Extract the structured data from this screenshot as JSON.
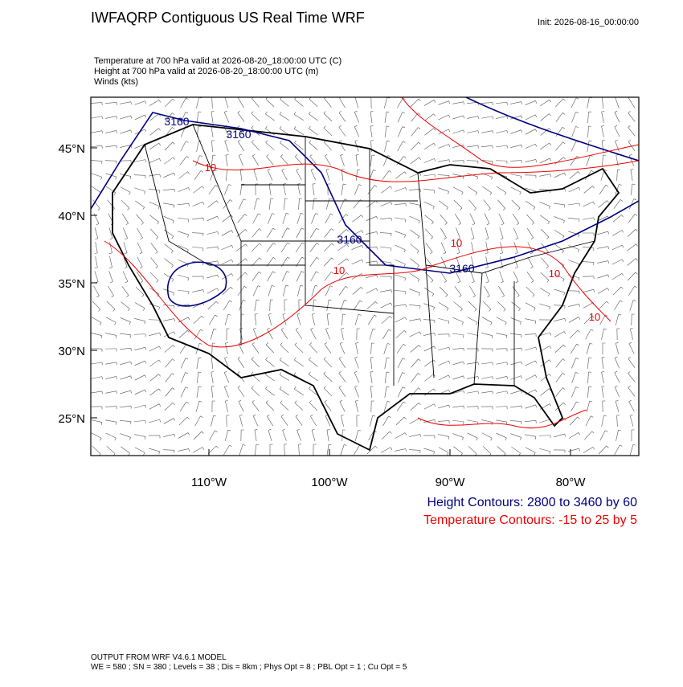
{
  "header": {
    "title": "IWFAQRP Contiguous US Real Time WRF",
    "init": "Init: 2026-08-16_00:00:00"
  },
  "fields": [
    "Temperature at 700 hPa valid at 2026-08-20_18:00:00 UTC   (C)",
    "Height at 700 hPa valid at 2026-08-20_18:00:00 UTC   (m)",
    "Winds   (kts)"
  ],
  "map": {
    "lat_labels": [
      "45°N",
      "40°N",
      "35°N",
      "30°N",
      "25°N"
    ],
    "lon_labels": [
      "110°W",
      "100°W",
      "90°W",
      "80°W"
    ],
    "height_labels": [
      "3160",
      "3160",
      "3160",
      "3160"
    ],
    "temperature_labels": [
      "10",
      "10",
      "10",
      "10",
      "10"
    ]
  },
  "contour_legend": {
    "height": "Height Contours: 2800 to 3460 by 60",
    "temperature": "Temperature Contours: -15 to 25 by 5"
  },
  "footer": [
    "OUTPUT FROM WRF V4.6.1 MODEL",
    "WE = 580 ; SN = 380 ; Levels = 38 ; Dis = 8km ; Phys Opt = 8 ; PBL Opt = 1 ; Cu Opt = 5"
  ]
}
